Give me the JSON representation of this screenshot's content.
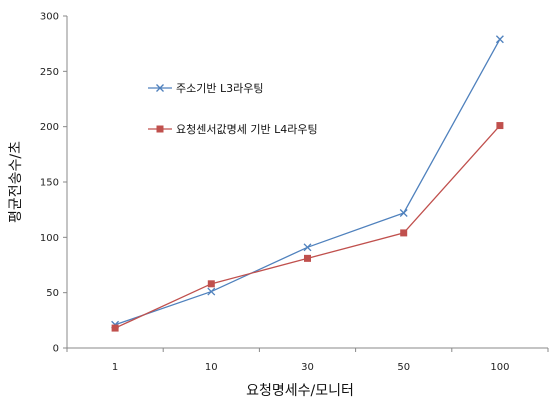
{
  "chart_data": {
    "type": "line",
    "title": "",
    "xlabel": "요청명세수/모니터",
    "ylabel": "평균전송수/초",
    "categories": [
      "1",
      "10",
      "30",
      "50",
      "100"
    ],
    "ylim": [
      0,
      300
    ],
    "yticks": [
      0,
      50,
      100,
      150,
      200,
      250,
      300
    ],
    "grid": false,
    "legend_position": "upper-left inside plot",
    "series": [
      {
        "name": "주소기반 L3라우팅",
        "color": "#4f81bd",
        "marker": "x",
        "values": [
          21,
          51,
          91,
          122,
          279
        ]
      },
      {
        "name": "요청센서값명세 기반 L4라우팅",
        "color": "#c0504d",
        "marker": "square",
        "values": [
          18,
          58,
          81,
          104,
          201
        ]
      }
    ]
  }
}
